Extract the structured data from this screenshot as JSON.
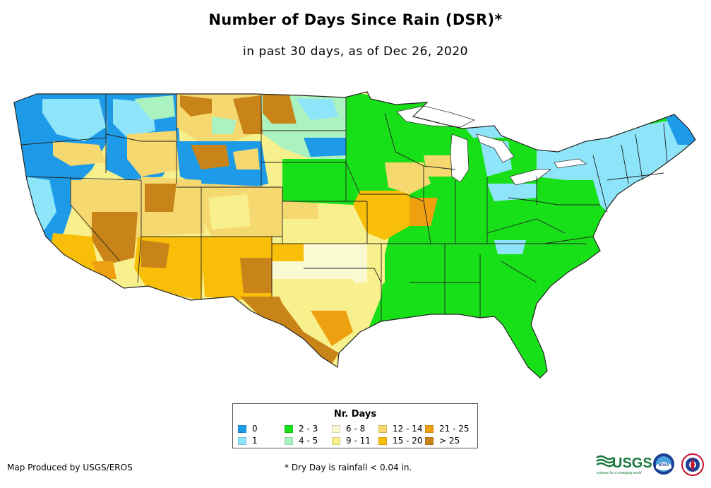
{
  "title": "Number of Days Since Rain (DSR)*",
  "subtitle": "in past 30 days, as of Dec 26, 2020",
  "legend": {
    "title": "Nr. Days",
    "items": [
      {
        "label": "0",
        "color": "#1e9be8"
      },
      {
        "label": "1",
        "color": "#8ee4f8"
      },
      {
        "label": "2 - 3",
        "color": "#18e018"
      },
      {
        "label": "4 - 5",
        "color": "#aaf2c0"
      },
      {
        "label": "6 - 8",
        "color": "#fafad2"
      },
      {
        "label": "9 - 11",
        "color": "#f8f08c"
      },
      {
        "label": "12 - 14",
        "color": "#f6d870"
      },
      {
        "label": "15 - 20",
        "color": "#f8be08"
      },
      {
        "label": "21 - 25",
        "color": "#eea010"
      },
      {
        "label": "> 25",
        "color": "#c88418"
      }
    ]
  },
  "credit": "Map Produced by USGS/EROS",
  "footnote": "* Dry Day is rainfall < 0.04 in.",
  "logos": {
    "usgs": "USGS",
    "usgs_tagline": "science for a changing world",
    "noaa": "NOAA"
  },
  "icons": [
    "usgs-logo-icon",
    "noaa-logo-icon",
    "nws-logo-icon"
  ]
}
